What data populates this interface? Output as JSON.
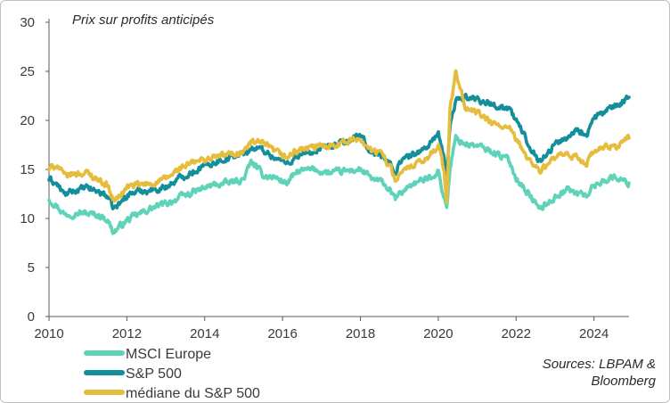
{
  "chart_data": {
    "type": "line",
    "title": "",
    "subtitle": "Prix sur profits anticipés",
    "xlabel": "",
    "ylabel": "",
    "xlim": [
      2010,
      2024.9
    ],
    "ylim": [
      0,
      30
    ],
    "x_ticks": [
      "2010",
      "2012",
      "2014",
      "2016",
      "2018",
      "2020",
      "2022",
      "2024"
    ],
    "y_ticks": [
      "0",
      "5",
      "10",
      "15",
      "20",
      "25",
      "30"
    ],
    "source": [
      "Sources: LBPAM &",
      "Bloomberg"
    ],
    "legend_position": "bottom-left",
    "series": [
      {
        "name": "MSCI Europe",
        "color": "#5fd3b9",
        "x": [
          2010.0,
          2010.2,
          2010.4,
          2010.7,
          2011.0,
          2011.3,
          2011.5,
          2011.65,
          2011.8,
          2012.0,
          2012.3,
          2012.6,
          2013.0,
          2013.4,
          2013.8,
          2014.2,
          2014.6,
          2015.0,
          2015.2,
          2015.5,
          2015.8,
          2016.1,
          2016.4,
          2016.8,
          2017.2,
          2017.6,
          2018.0,
          2018.3,
          2018.6,
          2018.9,
          2019.0,
          2019.3,
          2019.7,
          2020.0,
          2020.15,
          2020.22,
          2020.3,
          2020.45,
          2020.7,
          2021.0,
          2021.4,
          2021.8,
          2022.0,
          2022.3,
          2022.6,
          2022.8,
          2023.0,
          2023.3,
          2023.6,
          2023.8,
          2024.0,
          2024.3,
          2024.6,
          2024.85
        ],
        "values": [
          12.0,
          11.3,
          10.4,
          10.6,
          10.5,
          10.3,
          9.9,
          8.6,
          9.1,
          9.8,
          10.4,
          11.0,
          11.5,
          12.2,
          12.8,
          13.4,
          13.6,
          14.0,
          15.8,
          14.4,
          14.2,
          13.6,
          14.8,
          15.0,
          14.6,
          14.8,
          15.0,
          14.0,
          13.6,
          12.0,
          12.4,
          13.5,
          14.0,
          14.8,
          12.0,
          11.2,
          15.0,
          18.2,
          17.6,
          17.4,
          16.8,
          16.0,
          14.2,
          12.6,
          11.0,
          11.5,
          12.2,
          13.0,
          12.5,
          12.4,
          13.3,
          14.0,
          14.2,
          13.6
        ]
      },
      {
        "name": "S&P 500",
        "color": "#138e9b",
        "x": [
          2010.0,
          2010.2,
          2010.4,
          2010.7,
          2011.0,
          2011.3,
          2011.5,
          2011.65,
          2011.8,
          2012.0,
          2012.3,
          2012.6,
          2013.0,
          2013.4,
          2013.8,
          2014.2,
          2014.6,
          2015.0,
          2015.2,
          2015.5,
          2015.8,
          2016.1,
          2016.4,
          2016.8,
          2017.2,
          2017.6,
          2018.0,
          2018.3,
          2018.6,
          2018.9,
          2019.0,
          2019.3,
          2019.7,
          2020.0,
          2020.15,
          2020.22,
          2020.3,
          2020.45,
          2020.7,
          2021.0,
          2021.4,
          2021.8,
          2022.0,
          2022.3,
          2022.6,
          2022.8,
          2023.0,
          2023.3,
          2023.6,
          2023.8,
          2024.0,
          2024.3,
          2024.6,
          2024.85
        ],
        "values": [
          14.0,
          13.5,
          12.4,
          12.9,
          13.1,
          12.7,
          12.3,
          11.0,
          11.4,
          12.4,
          12.8,
          12.9,
          13.2,
          14.2,
          15.0,
          15.7,
          16.2,
          16.6,
          17.2,
          17.0,
          16.2,
          15.6,
          16.4,
          16.8,
          17.2,
          17.8,
          18.4,
          16.6,
          16.4,
          14.6,
          15.8,
          16.4,
          17.2,
          18.8,
          16.0,
          13.8,
          19.5,
          22.0,
          22.4,
          22.2,
          21.6,
          21.2,
          20.0,
          17.8,
          15.8,
          16.6,
          17.6,
          18.2,
          19.2,
          18.4,
          20.2,
          21.0,
          21.4,
          22.4
        ]
      },
      {
        "name": "médiane du S&P 500",
        "color": "#e6bc3c",
        "x": [
          2010.0,
          2010.2,
          2010.4,
          2010.7,
          2011.0,
          2011.3,
          2011.5,
          2011.65,
          2011.8,
          2012.0,
          2012.3,
          2012.6,
          2013.0,
          2013.4,
          2013.8,
          2014.2,
          2014.6,
          2015.0,
          2015.2,
          2015.5,
          2015.8,
          2016.1,
          2016.4,
          2016.8,
          2017.2,
          2017.6,
          2018.0,
          2018.3,
          2018.6,
          2018.9,
          2019.0,
          2019.3,
          2019.7,
          2020.0,
          2020.15,
          2020.22,
          2020.3,
          2020.45,
          2020.7,
          2021.0,
          2021.4,
          2021.8,
          2022.0,
          2022.3,
          2022.6,
          2022.8,
          2023.0,
          2023.3,
          2023.6,
          2023.8,
          2024.0,
          2024.3,
          2024.6,
          2024.85
        ],
        "values": [
          15.0,
          15.5,
          14.3,
          14.6,
          14.6,
          13.9,
          13.4,
          11.8,
          12.2,
          13.2,
          13.4,
          13.5,
          14.0,
          15.2,
          15.8,
          16.2,
          16.5,
          16.8,
          17.8,
          17.6,
          16.8,
          16.2,
          17.0,
          17.2,
          17.5,
          17.8,
          18.2,
          16.8,
          16.6,
          14.0,
          14.6,
          15.2,
          16.0,
          17.6,
          14.8,
          11.6,
          21.0,
          25.0,
          21.2,
          20.8,
          19.6,
          19.2,
          18.0,
          16.2,
          14.8,
          15.4,
          16.2,
          16.4,
          16.2,
          15.6,
          16.8,
          17.2,
          17.4,
          18.2
        ]
      }
    ]
  }
}
